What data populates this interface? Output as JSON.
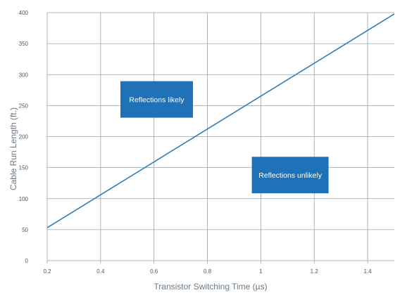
{
  "chart_data": {
    "type": "line",
    "title": "",
    "xlabel": "Transistor Switching Time (µs)",
    "ylabel": "Cable Run Length (ft.)",
    "xlim": [
      0.2,
      1.5
    ],
    "ylim": [
      0,
      400
    ],
    "x_ticks": [
      "0.2",
      "0.4",
      "0.6",
      "0.8",
      "1",
      "1.2",
      "1.4"
    ],
    "y_ticks": [
      "0",
      "50",
      "100",
      "150",
      "200",
      "250",
      "300",
      "350",
      "400"
    ],
    "grid": true,
    "series": [
      {
        "x": [
          0.2,
          1.5
        ],
        "y": [
          53,
          398
        ]
      }
    ],
    "annotations": [
      {
        "text": "Reflections likely",
        "x": 0.61,
        "y": 260
      },
      {
        "text": "Reflections unlikely",
        "x": 1.11,
        "y": 138
      }
    ],
    "colors": {
      "line": "#2f7dba",
      "grid": "#9aa3a8",
      "box": "#1f72b8",
      "box_text": "#ffffff",
      "axis_title": "#6b7a86",
      "tick": "#555555"
    }
  }
}
